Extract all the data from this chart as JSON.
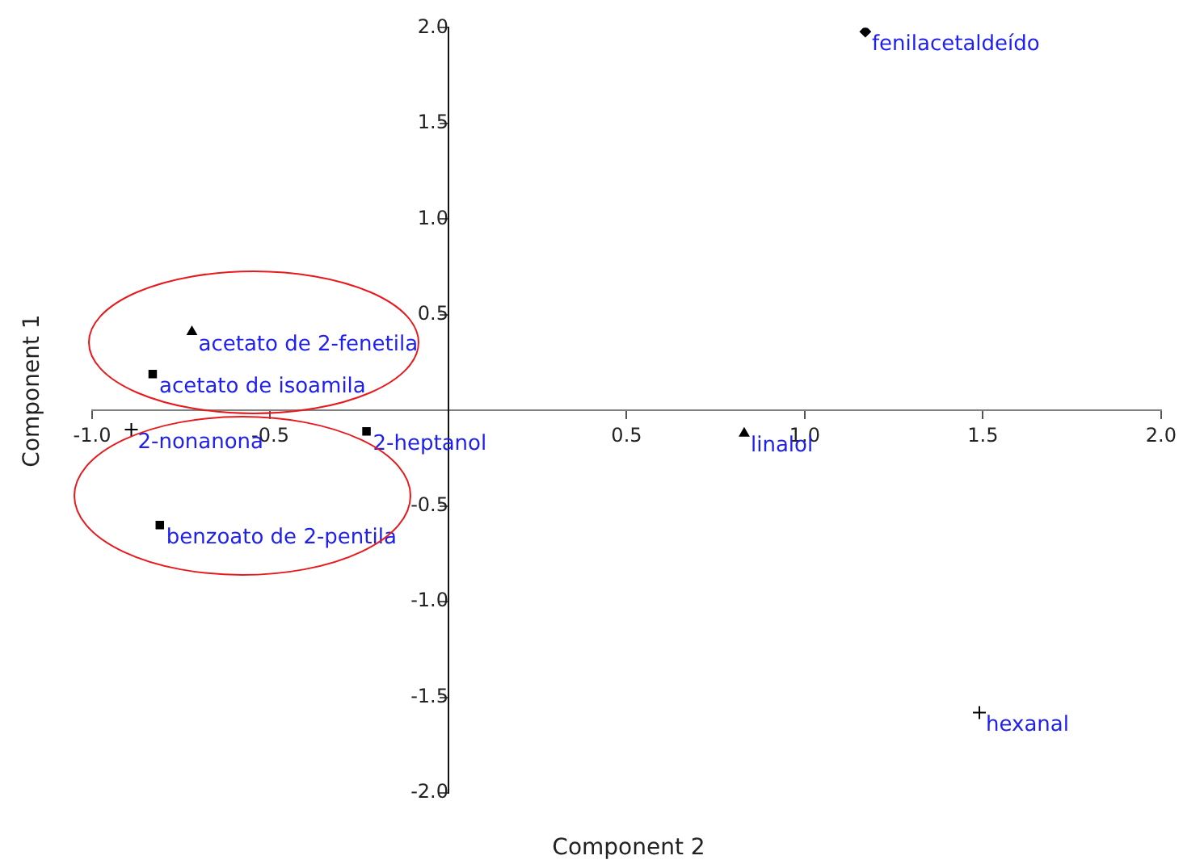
{
  "chart_data": {
    "type": "scatter",
    "xlabel": "Component 2",
    "ylabel": "Component 1",
    "xlim": [
      -1,
      2
    ],
    "ylim": [
      -2,
      2
    ],
    "xticks": [
      {
        "value": -1,
        "label": "-1.0"
      },
      -0.5,
      0.5,
      {
        "value": 1,
        "label": "1.0"
      },
      1.5,
      {
        "value": 2,
        "label": "2.0"
      }
    ],
    "yticks": [
      {
        "value": 2,
        "label": "2.0"
      },
      1.5,
      {
        "value": 1,
        "label": "1.0"
      },
      0.5,
      -0.5,
      {
        "value": -1,
        "label": "-1.0"
      },
      -1.5,
      {
        "value": -2,
        "label": "-2.0"
      }
    ],
    "grid": false,
    "legend": false,
    "series": [
      {
        "name": "fenilacetaldeído",
        "color": "#000000",
        "marker": "diamond",
        "x": [
          1.17
        ],
        "values": [
          1.98
        ]
      },
      {
        "name": "acetato de 2-fenetila",
        "color": "#000000",
        "marker": "triangle",
        "x": [
          -0.72
        ],
        "values": [
          0.41
        ]
      },
      {
        "name": "acetato de isoamila",
        "color": "#000000",
        "marker": "square",
        "x": [
          -0.83
        ],
        "values": [
          0.19
        ]
      },
      {
        "name": "2-nonanona",
        "color": "#000000",
        "marker": "cross",
        "x": [
          -0.89
        ],
        "values": [
          -0.1
        ]
      },
      {
        "name": "2-heptanol",
        "color": "#000000",
        "marker": "square",
        "x": [
          -0.23
        ],
        "values": [
          -0.11
        ]
      },
      {
        "name": "linalol",
        "color": "#000000",
        "marker": "triangle",
        "x": [
          0.83
        ],
        "values": [
          -0.12
        ]
      },
      {
        "name": "benzoato de 2-pentila",
        "color": "#000000",
        "marker": "square",
        "x": [
          -0.81
        ],
        "values": [
          -0.6
        ]
      },
      {
        "name": "hexanal",
        "color": "#000000",
        "marker": "cross",
        "x": [
          1.49
        ],
        "values": [
          -1.58
        ]
      }
    ]
  }
}
